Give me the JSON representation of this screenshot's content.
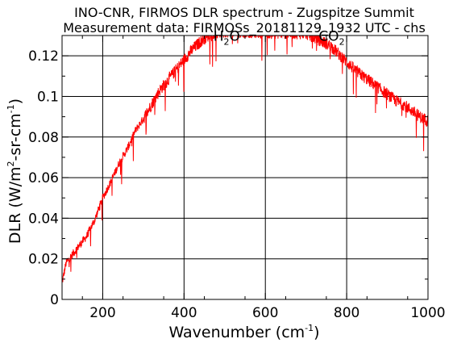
{
  "chart_data": {
    "type": "line",
    "title": "INO-CNR, FIRMOS DLR spectrum - Zugspitze Summit",
    "subtitle": "Measurement data: FIRMOSs_20181129_1932 UTC - chs",
    "xlabel": {
      "text": "Wavenumber (cm",
      "sup": "-1",
      "close": ")"
    },
    "ylabel": {
      "t1": "DLR (W/m",
      "s1": "2",
      "t2": "-sr-cm",
      "s2": "-1",
      "t3": ")"
    },
    "xlim": [
      100,
      1000
    ],
    "ylim": [
      0,
      0.13
    ],
    "x_ticks": [
      200,
      400,
      600,
      800,
      1000
    ],
    "x_tick_labels": [
      "200",
      "400",
      "600",
      "800",
      "1000"
    ],
    "y_ticks": [
      0,
      0.02,
      0.04,
      0.06,
      0.08,
      0.1,
      0.12
    ],
    "y_tick_labels": [
      "0",
      "0.02",
      "0.04",
      "0.06",
      "0.08",
      "0.1",
      "0.12"
    ],
    "grid": true,
    "annotations": [
      {
        "main": "H",
        "sub": "2",
        "rest": "O",
        "x": 505,
        "y": 0.1275
      },
      {
        "main": "CO",
        "sub": "2",
        "rest": "",
        "x": 763,
        "y": 0.1275
      }
    ],
    "series": [
      {
        "color": "#ff0000",
        "x": [
          100,
          110,
          125,
          140,
          160,
          180,
          200,
          220,
          240,
          260,
          280,
          300,
          320,
          340,
          360,
          380,
          400,
          420,
          440,
          460,
          480,
          500,
          700,
          720,
          740,
          760,
          780,
          800,
          820,
          840,
          860,
          880,
          900,
          920,
          940,
          960,
          980,
          1000
        ],
        "y": [
          0.008,
          0.018,
          0.022,
          0.026,
          0.031,
          0.039,
          0.05,
          0.058,
          0.067,
          0.074,
          0.083,
          0.089,
          0.096,
          0.103,
          0.108,
          0.113,
          0.118,
          0.123,
          0.127,
          0.13,
          0.131,
          0.132,
          0.131,
          0.129,
          0.127,
          0.125,
          0.121,
          0.117,
          0.113,
          0.11,
          0.107,
          0.104,
          0.101,
          0.098,
          0.096,
          0.093,
          0.09,
          0.088
        ]
      }
    ]
  }
}
